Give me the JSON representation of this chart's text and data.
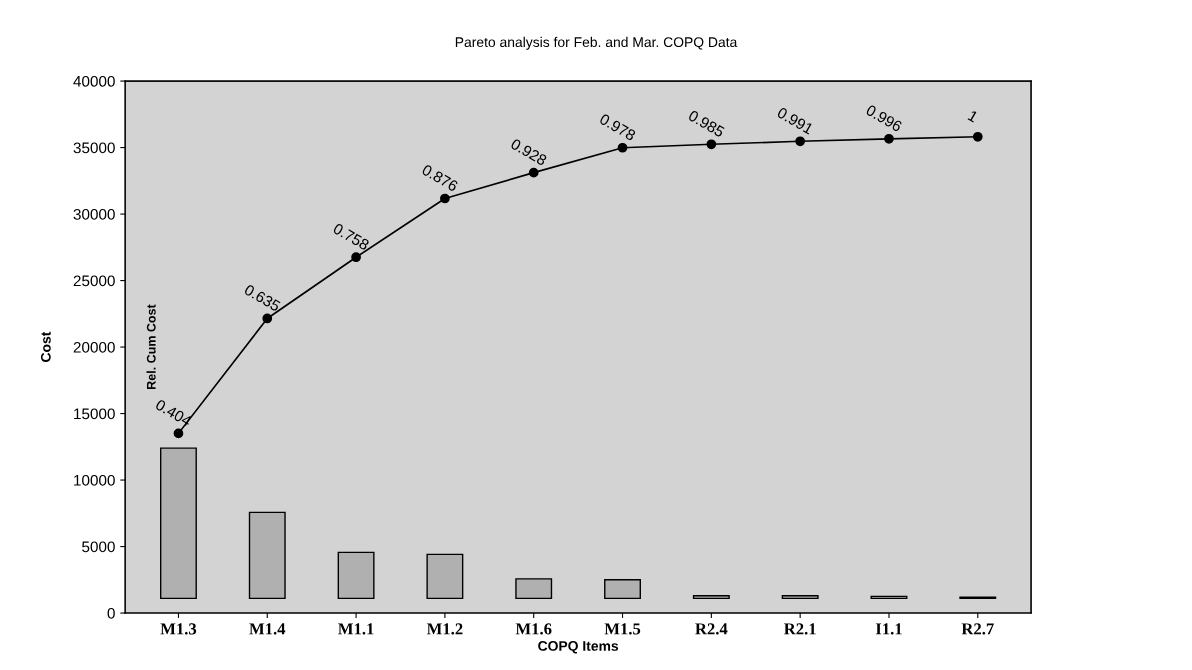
{
  "chart_data": {
    "type": "bar",
    "title": "Pareto analysis for Feb. and Mar. COPQ Data",
    "xlabel": "COPQ Items",
    "ylabel": "Cost",
    "y2label": "Rel. Cum Cost",
    "categories": [
      "M1.3",
      "M1.4",
      "M1.1",
      "M1.2",
      "M1.6",
      "M1.5",
      "R2.4",
      "R2.1",
      "I1.1",
      "R2.7"
    ],
    "ylim": [
      0,
      40000
    ],
    "yticks": [
      0,
      5000,
      10000,
      15000,
      20000,
      25000,
      30000,
      35000,
      40000
    ],
    "y2lim": [
      0.043,
      1.112
    ],
    "series": [
      {
        "color": "#b0b0b0",
        "base": [
          1100,
          1100,
          1100,
          1100,
          1100,
          1100,
          1100,
          1100,
          1100,
          1100
        ],
        "values": [
          11300,
          6470,
          3460,
          3310,
          1470,
          1400,
          200,
          200,
          150,
          100
        ]
      },
      {
        "type": "line",
        "axis": "y2",
        "color": "#000000",
        "marker": "circle",
        "line_style": "solid",
        "data_labels": true,
        "values": [
          0.404,
          0.635,
          0.758,
          0.876,
          0.928,
          0.978,
          0.985,
          0.991,
          0.996,
          1
        ]
      }
    ],
    "grid": false,
    "legend": false
  }
}
